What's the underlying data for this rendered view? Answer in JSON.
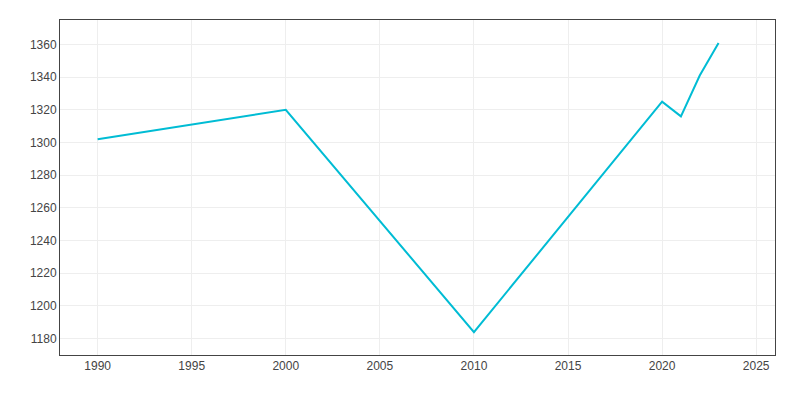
{
  "chart_data": {
    "type": "line",
    "x": [
      1990,
      2000,
      2010,
      2020,
      2021,
      2022,
      2023
    ],
    "values": [
      1302,
      1320,
      1184,
      1325,
      1316,
      1341,
      1361
    ],
    "color": "#00BCD4",
    "xlim": [
      1988,
      2026
    ],
    "ylim": [
      1170,
      1375
    ],
    "xticks": [
      1990,
      1995,
      2000,
      2005,
      2010,
      2015,
      2020,
      2025
    ],
    "yticks": [
      1180,
      1200,
      1220,
      1240,
      1260,
      1280,
      1300,
      1320,
      1340,
      1360
    ],
    "grid": true
  }
}
